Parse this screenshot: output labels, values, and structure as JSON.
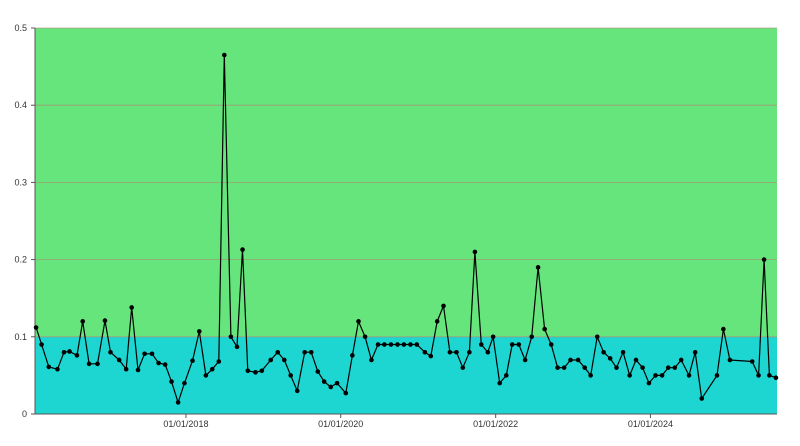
{
  "colors": {
    "band_upper": "#66e57d",
    "band_lower": "#1dd6d2",
    "line": "#000000",
    "grid": "#b08a73"
  },
  "chart_data": {
    "type": "line",
    "title": "",
    "xlabel": "",
    "ylabel": "",
    "ylim": [
      0,
      0.5
    ],
    "xlim": [
      "2016-01-20",
      "2025-08-20"
    ],
    "yticks": [
      0,
      0.1,
      0.2,
      0.3,
      0.4,
      0.5
    ],
    "ytick_labels": [
      "0",
      "0.1",
      "0.2",
      "0.3",
      "0.4",
      "0.5"
    ],
    "xticks": [
      "2018-01-01",
      "2020-01-01",
      "2022-01-01",
      "2024-01-01"
    ],
    "xtick_labels": [
      "01/01/2018",
      "01/01/2020",
      "01/01/2022",
      "01/01/2024"
    ],
    "grid": "horizontal",
    "bands": [
      {
        "from": 0,
        "to": 0.1,
        "color": "#1dd6d2"
      },
      {
        "from": 0.1,
        "to": 0.5,
        "color": "#66e57d"
      }
    ],
    "series": [
      {
        "marker": "circle",
        "points": [
          [
            "2016-01-25",
            0.112
          ],
          [
            "2016-02-20",
            0.09
          ],
          [
            "2016-03-25",
            0.061
          ],
          [
            "2016-05-05",
            0.058
          ],
          [
            "2016-06-05",
            0.08
          ],
          [
            "2016-07-01",
            0.081
          ],
          [
            "2016-08-05",
            0.076
          ],
          [
            "2016-09-01",
            0.12
          ],
          [
            "2016-10-01",
            0.065
          ],
          [
            "2016-11-10",
            0.065
          ],
          [
            "2016-12-15",
            0.121
          ],
          [
            "2017-01-10",
            0.08
          ],
          [
            "2017-02-20",
            0.07
          ],
          [
            "2017-03-25",
            0.058
          ],
          [
            "2017-04-20",
            0.138
          ],
          [
            "2017-05-20",
            0.057
          ],
          [
            "2017-06-20",
            0.078
          ],
          [
            "2017-07-25",
            0.078
          ],
          [
            "2017-08-25",
            0.066
          ],
          [
            "2017-09-25",
            0.064
          ],
          [
            "2017-10-25",
            0.042
          ],
          [
            "2017-11-25",
            0.015
          ],
          [
            "2017-12-25",
            0.04
          ],
          [
            "2018-02-01",
            0.069
          ],
          [
            "2018-03-05",
            0.107
          ],
          [
            "2018-04-05",
            0.05
          ],
          [
            "2018-05-05",
            0.058
          ],
          [
            "2018-06-05",
            0.068
          ],
          [
            "2018-07-01",
            0.465
          ],
          [
            "2018-08-01",
            0.1
          ],
          [
            "2018-08-30",
            0.087
          ],
          [
            "2018-09-25",
            0.213
          ],
          [
            "2018-10-20",
            0.056
          ],
          [
            "2018-11-25",
            0.054
          ],
          [
            "2018-12-25",
            0.056
          ],
          [
            "2019-02-05",
            0.07
          ],
          [
            "2019-03-10",
            0.08
          ],
          [
            "2019-04-10",
            0.07
          ],
          [
            "2019-05-10",
            0.05
          ],
          [
            "2019-06-10",
            0.03
          ],
          [
            "2019-07-15",
            0.08
          ],
          [
            "2019-08-15",
            0.08
          ],
          [
            "2019-09-15",
            0.055
          ],
          [
            "2019-10-15",
            0.042
          ],
          [
            "2019-11-15",
            0.035
          ],
          [
            "2019-12-15",
            0.04
          ],
          [
            "2020-01-25",
            0.027
          ],
          [
            "2020-02-25",
            0.076
          ],
          [
            "2020-03-25",
            0.12
          ],
          [
            "2020-04-25",
            0.1
          ],
          [
            "2020-05-25",
            0.07
          ],
          [
            "2020-06-25",
            0.09
          ],
          [
            "2020-07-25",
            0.09
          ],
          [
            "2020-08-25",
            0.09
          ],
          [
            "2020-09-25",
            0.09
          ],
          [
            "2020-10-25",
            0.09
          ],
          [
            "2020-11-25",
            0.09
          ],
          [
            "2020-12-25",
            0.09
          ],
          [
            "2021-02-01",
            0.08
          ],
          [
            "2021-03-01",
            0.075
          ],
          [
            "2021-03-31",
            0.12
          ],
          [
            "2021-04-30",
            0.14
          ],
          [
            "2021-05-30",
            0.08
          ],
          [
            "2021-06-30",
            0.08
          ],
          [
            "2021-07-30",
            0.06
          ],
          [
            "2021-08-30",
            0.08
          ],
          [
            "2021-09-25",
            0.21
          ],
          [
            "2021-10-25",
            0.09
          ],
          [
            "2021-11-25",
            0.08
          ],
          [
            "2021-12-20",
            0.1
          ],
          [
            "2022-01-20",
            0.04
          ],
          [
            "2022-02-20",
            0.05
          ],
          [
            "2022-03-20",
            0.09
          ],
          [
            "2022-04-20",
            0.09
          ],
          [
            "2022-05-20",
            0.07
          ],
          [
            "2022-06-20",
            0.1
          ],
          [
            "2022-07-20",
            0.19
          ],
          [
            "2022-08-20",
            0.11
          ],
          [
            "2022-09-20",
            0.09
          ],
          [
            "2022-10-20",
            0.06
          ],
          [
            "2022-11-20",
            0.06
          ],
          [
            "2022-12-20",
            0.07
          ],
          [
            "2023-01-25",
            0.07
          ],
          [
            "2023-02-25",
            0.06
          ],
          [
            "2023-03-25",
            0.05
          ],
          [
            "2023-04-25",
            0.1
          ],
          [
            "2023-05-25",
            0.08
          ],
          [
            "2023-06-25",
            0.072
          ],
          [
            "2023-07-25",
            0.06
          ],
          [
            "2023-08-25",
            0.08
          ],
          [
            "2023-09-25",
            0.05
          ],
          [
            "2023-10-25",
            0.07
          ],
          [
            "2023-11-25",
            0.06
          ],
          [
            "2023-12-25",
            0.04
          ],
          [
            "2024-01-25",
            0.05
          ],
          [
            "2024-02-25",
            0.05
          ],
          [
            "2024-03-25",
            0.06
          ],
          [
            "2024-04-25",
            0.06
          ],
          [
            "2024-05-25",
            0.07
          ],
          [
            "2024-07-01",
            0.05
          ],
          [
            "2024-07-30",
            0.08
          ],
          [
            "2024-08-30",
            0.02
          ],
          [
            "2024-11-10",
            0.05
          ],
          [
            "2024-12-10",
            0.11
          ],
          [
            "2025-01-10",
            0.07
          ],
          [
            "2025-04-25",
            0.068
          ],
          [
            "2025-05-25",
            0.05
          ],
          [
            "2025-06-20",
            0.2
          ],
          [
            "2025-07-15",
            0.05
          ],
          [
            "2025-08-15",
            0.047
          ]
        ]
      }
    ]
  }
}
